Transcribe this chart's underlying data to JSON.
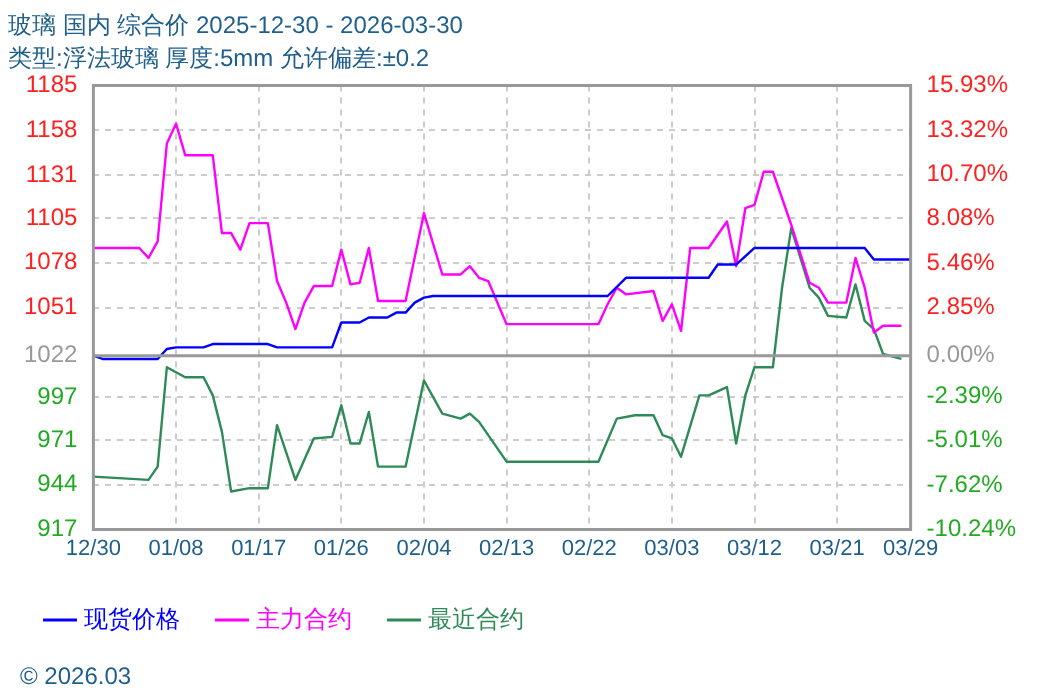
{
  "chart_data": {
    "type": "line",
    "title": "玻璃 国内 综合价 2025-12-30 - 2026-03-30",
    "subtitle": "类型:浮法玻璃 厚度:5mm 允许偏差:±0.2",
    "xlim": [
      "2025-12-30",
      "2026-03-29"
    ],
    "xticks": [
      {
        "value": "2025-12-30",
        "label": "12/30"
      },
      {
        "value": "2026-01-08",
        "label": "01/08"
      },
      {
        "value": "2026-01-17",
        "label": "01/17"
      },
      {
        "value": "2026-01-26",
        "label": "01/26"
      },
      {
        "value": "2026-02-04",
        "label": "02/04"
      },
      {
        "value": "2026-02-13",
        "label": "02/13"
      },
      {
        "value": "2026-02-22",
        "label": "02/22"
      },
      {
        "value": "2026-03-03",
        "label": "03/03"
      },
      {
        "value": "2026-03-12",
        "label": "03/12"
      },
      {
        "value": "2026-03-21",
        "label": "03/21"
      },
      {
        "value": "2026-03-29",
        "label": "03/29"
      }
    ],
    "ylim": [
      917,
      1185
    ],
    "yticks": [
      917,
      944,
      971,
      997,
      1022,
      1051,
      1078,
      1105,
      1131,
      1158,
      1185
    ],
    "y2lim": [
      -10.24,
      15.93
    ],
    "y2ticks": [
      {
        "value": -10.24,
        "label": "-10.24%"
      },
      {
        "value": -7.62,
        "label": "-7.62%"
      },
      {
        "value": -5.01,
        "label": "-5.01%"
      },
      {
        "value": -2.39,
        "label": "-2.39%"
      },
      {
        "value": 0,
        "label": "0.00%"
      },
      {
        "value": 2.85,
        "label": "2.85%"
      },
      {
        "value": 5.46,
        "label": "5.46%"
      },
      {
        "value": 8.08,
        "label": "8.08%"
      },
      {
        "value": 10.7,
        "label": "10.70%"
      },
      {
        "value": 13.32,
        "label": "13.32%"
      },
      {
        "value": 15.93,
        "label": "15.93%"
      }
    ],
    "grid": true,
    "legend": "bottom",
    "marker": "none",
    "line_style": "solid",
    "ref_lines": [
      {
        "axis": "y",
        "value": 1022,
        "color": "#999999"
      }
    ],
    "annotations": [
      "© 2026.03"
    ],
    "series": [
      {
        "name": "现货价格",
        "color": "#0000ff",
        "x": [
          "2025-12-30",
          "2025-12-31",
          "2026-01-06",
          "2026-01-07",
          "2026-01-08",
          "2026-01-11",
          "2026-01-12",
          "2026-01-18",
          "2026-01-19",
          "2026-01-25",
          "2026-01-26",
          "2026-01-28",
          "2026-01-29",
          "2026-01-31",
          "2026-02-01",
          "2026-02-02",
          "2026-02-03",
          "2026-02-04",
          "2026-02-05",
          "2026-02-24",
          "2026-02-26",
          "2026-03-07",
          "2026-03-08",
          "2026-03-10",
          "2026-03-12",
          "2026-03-24",
          "2026-03-25",
          "2026-03-29"
        ],
        "values": [
          1022,
          1020,
          1020,
          1026,
          1027,
          1027,
          1029,
          1029,
          1027,
          1027,
          1042,
          1042,
          1045,
          1045,
          1048,
          1048,
          1054,
          1057,
          1058,
          1058,
          1069,
          1069,
          1077,
          1077,
          1087,
          1087,
          1080,
          1080
        ]
      },
      {
        "name": "主力合约",
        "color": "#ff00ff",
        "x": [
          "2025-12-30",
          "2026-01-04",
          "2026-01-05",
          "2026-01-06",
          "2026-01-07",
          "2026-01-08",
          "2026-01-09",
          "2026-01-12",
          "2026-01-13",
          "2026-01-14",
          "2026-01-15",
          "2026-01-16",
          "2026-01-18",
          "2026-01-19",
          "2026-01-20",
          "2026-01-21",
          "2026-01-22",
          "2026-01-23",
          "2026-01-25",
          "2026-01-26",
          "2026-01-27",
          "2026-01-28",
          "2026-01-29",
          "2026-01-30",
          "2026-02-02",
          "2026-02-04",
          "2026-02-06",
          "2026-02-08",
          "2026-02-09",
          "2026-02-10",
          "2026-02-11",
          "2026-02-13",
          "2026-02-23",
          "2026-02-24",
          "2026-02-25",
          "2026-02-26",
          "2026-03-01",
          "2026-03-02",
          "2026-03-03",
          "2026-03-04",
          "2026-03-05",
          "2026-03-07",
          "2026-03-09",
          "2026-03-10",
          "2026-03-11",
          "2026-03-12",
          "2026-03-13",
          "2026-03-14",
          "2026-03-16",
          "2026-03-18",
          "2026-03-19",
          "2026-03-20",
          "2026-03-22",
          "2026-03-23",
          "2026-03-24",
          "2026-03-25",
          "2026-03-26",
          "2026-03-28"
        ],
        "values": [
          1087,
          1087,
          1081,
          1091,
          1150,
          1162,
          1143,
          1143,
          1096,
          1096,
          1086,
          1102,
          1102,
          1067,
          1054,
          1038,
          1054,
          1064,
          1064,
          1086,
          1065,
          1066,
          1087,
          1055,
          1055,
          1108,
          1071,
          1071,
          1076,
          1069,
          1067,
          1041,
          1041,
          1053,
          1063,
          1059,
          1061,
          1043,
          1053,
          1037,
          1087,
          1087,
          1103,
          1076,
          1111,
          1113,
          1133,
          1133,
          1101,
          1066,
          1063,
          1054,
          1054,
          1081,
          1063,
          1036,
          1040,
          1040
        ]
      },
      {
        "name": "最近合约",
        "color": "#2e8b57",
        "x": [
          "2025-12-30",
          "2026-01-05",
          "2026-01-06",
          "2026-01-07",
          "2026-01-08",
          "2026-01-09",
          "2026-01-11",
          "2026-01-12",
          "2026-01-13",
          "2026-01-14",
          "2026-01-16",
          "2026-01-18",
          "2026-01-19",
          "2026-01-21",
          "2026-01-23",
          "2026-01-25",
          "2026-01-26",
          "2026-01-27",
          "2026-01-28",
          "2026-01-29",
          "2026-01-30",
          "2026-02-02",
          "2026-02-04",
          "2026-02-06",
          "2026-02-08",
          "2026-02-09",
          "2026-02-10",
          "2026-02-13",
          "2026-02-23",
          "2026-02-25",
          "2026-02-27",
          "2026-03-01",
          "2026-03-02",
          "2026-03-03",
          "2026-03-04",
          "2026-03-06",
          "2026-03-07",
          "2026-03-09",
          "2026-03-10",
          "2026-03-11",
          "2026-03-12",
          "2026-03-14",
          "2026-03-15",
          "2026-03-16",
          "2026-03-18",
          "2026-03-19",
          "2026-03-20",
          "2026-03-22",
          "2026-03-23",
          "2026-03-24",
          "2026-03-25",
          "2026-03-26",
          "2026-03-28"
        ],
        "values": [
          949,
          947,
          955,
          1015,
          1012,
          1009,
          1009,
          998,
          976,
          940,
          942,
          942,
          980,
          947,
          972,
          973,
          992,
          969,
          969,
          988,
          955,
          955,
          1007,
          987,
          984,
          987,
          982,
          958,
          958,
          984,
          986,
          986,
          974,
          972,
          961,
          998,
          998,
          1003,
          969,
          998,
          1015,
          1015,
          1063,
          1099,
          1063,
          1057,
          1046,
          1045,
          1065,
          1043,
          1038,
          1023,
          1020
        ]
      }
    ]
  }
}
